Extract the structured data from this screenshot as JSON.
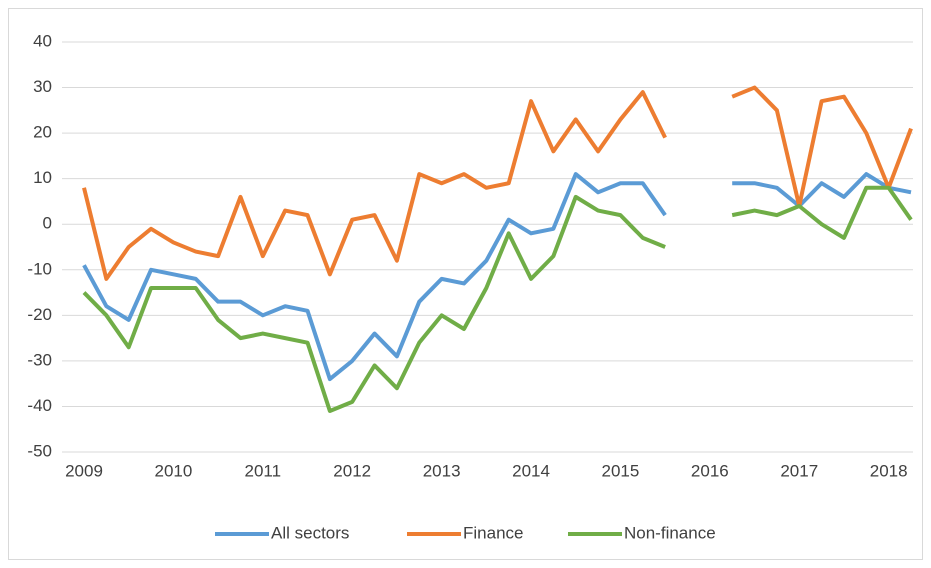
{
  "chart_data": {
    "type": "line",
    "x": [
      2009,
      2009.25,
      2009.5,
      2009.75,
      2010,
      2010.25,
      2010.5,
      2010.75,
      2011,
      2011.25,
      2011.5,
      2011.75,
      2012,
      2012.25,
      2012.5,
      2012.75,
      2013,
      2013.25,
      2013.5,
      2013.75,
      2014,
      2014.25,
      2014.5,
      2014.75,
      2015,
      2015.25,
      2015.5,
      2015.75,
      2016,
      2016.25,
      2016.5,
      2016.75,
      2017,
      2017.25,
      2017.5,
      2017.75,
      2018,
      2018.25
    ],
    "series": [
      {
        "name": "All sectors",
        "color": "#5b9bd5",
        "values": [
          -9,
          -18,
          -21,
          -10,
          -11,
          -12,
          -17,
          -17,
          -20,
          -18,
          -19,
          -34,
          -30,
          -24,
          -29,
          -17,
          -12,
          -13,
          -8,
          1,
          -2,
          -1,
          11,
          7,
          9,
          9,
          2,
          null,
          null,
          9,
          9,
          8,
          4,
          9,
          6,
          11,
          8,
          7
        ]
      },
      {
        "name": "Finance",
        "color": "#ed7d31",
        "values": [
          8,
          -12,
          -5,
          -1,
          -4,
          -6,
          -7,
          6,
          -7,
          3,
          2,
          -11,
          1,
          2,
          -8,
          11,
          9,
          11,
          8,
          9,
          27,
          16,
          23,
          16,
          23,
          29,
          19,
          null,
          null,
          28,
          30,
          25,
          4,
          27,
          28,
          20,
          8,
          21
        ]
      },
      {
        "name": "Non-finance",
        "color": "#70ad47",
        "values": [
          -15,
          -20,
          -27,
          -14,
          -14,
          -14,
          -21,
          -25,
          -24,
          -25,
          -26,
          -41,
          -39,
          -31,
          -36,
          -26,
          -20,
          -23,
          -14,
          -2,
          -12,
          -7,
          6,
          3,
          2,
          -3,
          -5,
          null,
          null,
          2,
          3,
          2,
          4,
          0,
          -3,
          8,
          8,
          1
        ]
      }
    ],
    "xlim": [
      2009,
      2018.25
    ],
    "xticks": [
      2009,
      2010,
      2011,
      2012,
      2013,
      2014,
      2015,
      2016,
      2017,
      2018
    ],
    "ylim": [
      -50,
      40
    ],
    "yticks": [
      -50,
      -40,
      -30,
      -20,
      -10,
      0,
      10,
      20,
      30,
      40
    ],
    "grid": true,
    "legend": "bottom"
  }
}
